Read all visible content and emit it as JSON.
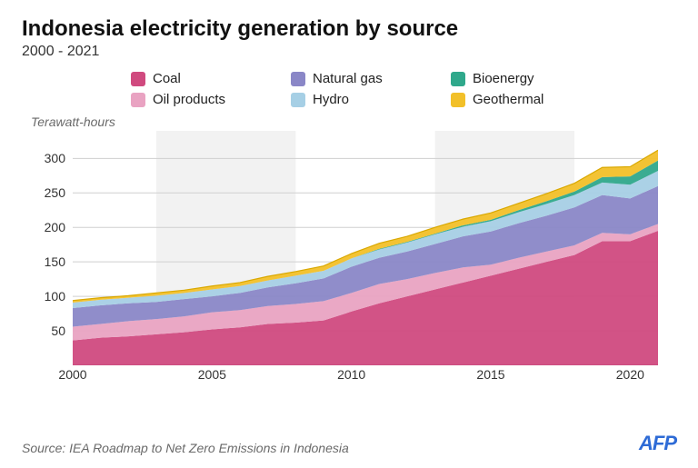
{
  "title": "Indonesia electricity generation by source",
  "subtitle": "2000 - 2021",
  "y_unit": "Terawatt-hours",
  "source": "Source: IEA Roadmap to Net Zero Emissions in Indonesia",
  "logo": "AFP",
  "chart": {
    "type": "stacked-area",
    "xlim": [
      2000,
      2021
    ],
    "ylim": [
      0,
      340
    ],
    "y_ticks": [
      50,
      100,
      150,
      200,
      250,
      300
    ],
    "x_ticks": [
      2000,
      2005,
      2010,
      2015,
      2020
    ],
    "bands": [
      {
        "from": 2003,
        "to": 2008,
        "color": "#f2f2f2"
      },
      {
        "from": 2013,
        "to": 2018,
        "color": "#f2f2f2"
      }
    ],
    "background_color": "#ffffff",
    "grid_color": "#cfcfcf",
    "axis_fontsize": 14,
    "series": [
      {
        "key": "coal",
        "label": "Coal",
        "color": "#d04a7f"
      },
      {
        "key": "oil",
        "label": "Oil products",
        "color": "#e9a3c2"
      },
      {
        "key": "gas",
        "label": "Natural gas",
        "color": "#8a87c7"
      },
      {
        "key": "hydro",
        "label": "Hydro",
        "color": "#a6cfe5"
      },
      {
        "key": "bio",
        "label": "Bioenergy",
        "color": "#2fa88b"
      },
      {
        "key": "geothermal",
        "label": "Geothermal",
        "color": "#f2c029"
      }
    ],
    "legend_order": [
      "coal",
      "gas",
      "bio",
      "oil",
      "hydro",
      "geothermal"
    ],
    "years": [
      2000,
      2001,
      2002,
      2003,
      2004,
      2005,
      2006,
      2007,
      2008,
      2009,
      2010,
      2011,
      2012,
      2013,
      2014,
      2015,
      2016,
      2017,
      2018,
      2019,
      2020,
      2021
    ],
    "data": {
      "coal": [
        36,
        40,
        42,
        45,
        48,
        52,
        55,
        60,
        62,
        65,
        78,
        90,
        100,
        110,
        120,
        130,
        140,
        150,
        160,
        180,
        180,
        195
      ],
      "oil": [
        20,
        20,
        22,
        22,
        23,
        25,
        25,
        26,
        27,
        28,
        27,
        28,
        25,
        24,
        22,
        16,
        16,
        15,
        14,
        12,
        10,
        10
      ],
      "gas": [
        27,
        27,
        26,
        25,
        25,
        23,
        25,
        27,
        30,
        33,
        38,
        38,
        40,
        42,
        45,
        48,
        50,
        52,
        55,
        55,
        52,
        55
      ],
      "hydro": [
        8,
        8,
        8,
        9,
        9,
        10,
        10,
        10,
        11,
        11,
        12,
        12,
        13,
        14,
        14,
        15,
        16,
        17,
        18,
        18,
        20,
        22
      ],
      "bio": [
        0,
        0,
        0,
        0,
        0,
        0,
        0,
        0,
        0,
        0,
        0,
        1,
        1,
        1,
        2,
        2,
        3,
        4,
        5,
        8,
        12,
        15
      ],
      "geothermal": [
        3,
        3,
        3,
        4,
        4,
        5,
        5,
        6,
        6,
        7,
        7,
        8,
        8,
        9,
        9,
        10,
        10,
        11,
        12,
        14,
        14,
        15
      ]
    }
  }
}
